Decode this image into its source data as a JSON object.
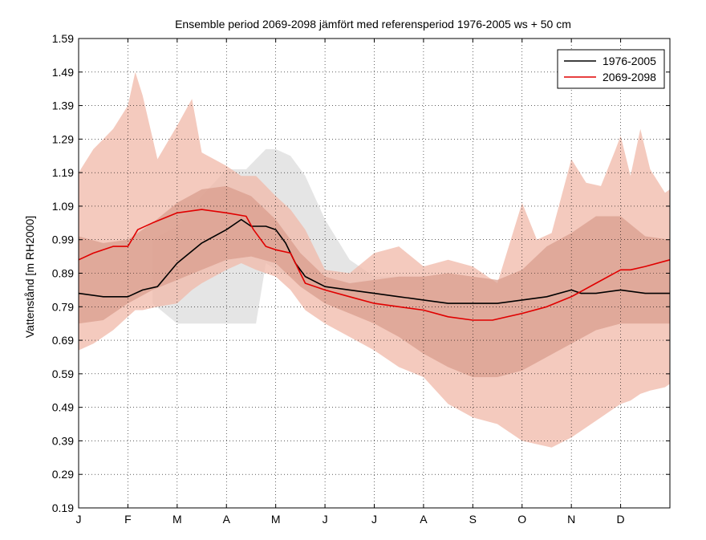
{
  "chart_data": {
    "type": "line",
    "title": "Ensemble period 2069-2098 jämfört med referensperiod 1976-2005 ws + 50 cm",
    "xlabel": "",
    "ylabel": "Vattenstånd [m RH2000]",
    "xlim": [
      1,
      13
    ],
    "ylim": [
      0.19,
      1.59
    ],
    "grid": true,
    "legend_position": "top-right",
    "x_ticks": [
      1,
      2,
      3,
      4,
      5,
      6,
      7,
      8,
      9,
      10,
      11,
      12
    ],
    "x_tick_labels": [
      "J",
      "F",
      "M",
      "A",
      "M",
      "J",
      "J",
      "A",
      "S",
      "O",
      "N",
      "D"
    ],
    "y_ticks": [
      0.19,
      0.29,
      0.39,
      0.49,
      0.59,
      0.69,
      0.79,
      0.89,
      0.99,
      1.09,
      1.19,
      1.29,
      1.39,
      1.49,
      1.59
    ],
    "y_tick_labels": [
      "0.19",
      "0.29",
      "0.39",
      "0.49",
      "0.59",
      "0.69",
      "0.79",
      "0.89",
      "0.99",
      "1.09",
      "1.19",
      "1.29",
      "1.39",
      "1.49",
      "1.59"
    ],
    "series": [
      {
        "name": "1976-2005",
        "color": "#000000",
        "x": [
          1.0,
          1.5,
          2.0,
          2.3,
          2.6,
          3.0,
          3.5,
          4.0,
          4.3,
          4.5,
          4.8,
          5.0,
          5.2,
          5.4,
          5.6,
          6.0,
          6.5,
          7.0,
          7.5,
          8.0,
          8.5,
          9.0,
          9.5,
          10.0,
          10.5,
          11.0,
          11.2,
          11.5,
          12.0,
          12.5,
          13.0
        ],
        "values": [
          0.83,
          0.82,
          0.82,
          0.84,
          0.85,
          0.92,
          0.98,
          1.02,
          1.05,
          1.03,
          1.03,
          1.02,
          0.98,
          0.92,
          0.88,
          0.85,
          0.84,
          0.83,
          0.82,
          0.81,
          0.8,
          0.8,
          0.8,
          0.81,
          0.82,
          0.84,
          0.83,
          0.83,
          0.84,
          0.83,
          0.83
        ]
      },
      {
        "name": "2069-2098",
        "color": "#e00000",
        "x": [
          1.0,
          1.3,
          1.7,
          2.0,
          2.2,
          2.5,
          3.0,
          3.5,
          4.0,
          4.4,
          4.55,
          4.8,
          5.0,
          5.3,
          5.5,
          5.6,
          6.0,
          6.5,
          7.0,
          7.5,
          8.0,
          8.5,
          9.0,
          9.4,
          10.0,
          10.5,
          11.0,
          11.5,
          12.0,
          12.2,
          12.5,
          13.0
        ],
        "values": [
          0.93,
          0.95,
          0.97,
          0.97,
          1.02,
          1.04,
          1.07,
          1.08,
          1.07,
          1.06,
          1.02,
          0.97,
          0.96,
          0.95,
          0.89,
          0.86,
          0.84,
          0.82,
          0.8,
          0.79,
          0.78,
          0.76,
          0.75,
          0.75,
          0.77,
          0.79,
          0.82,
          0.86,
          0.9,
          0.9,
          0.91,
          0.93
        ]
      }
    ],
    "bands": [
      {
        "name": "1976-2005 spread",
        "color": "#e0e0e0",
        "x": [
          2.5,
          3.0,
          3.5,
          4.0,
          4.4,
          4.6,
          4.8,
          5.0,
          5.3,
          5.6,
          6.0,
          6.5,
          7.0,
          8.0
        ],
        "upper": [
          0.99,
          1.03,
          1.12,
          1.2,
          1.2,
          1.23,
          1.26,
          1.26,
          1.24,
          1.18,
          1.05,
          0.93,
          0.88,
          0.88
        ],
        "lower": [
          0.8,
          0.74,
          0.74,
          0.74,
          0.74,
          0.74,
          0.92,
          0.9,
          0.88,
          0.86,
          0.84,
          0.84,
          0.84,
          0.84
        ]
      },
      {
        "name": "2069-2098 full range",
        "color": "#f0b8a8",
        "x": [
          1.0,
          1.3,
          1.7,
          2.0,
          2.15,
          2.3,
          2.6,
          3.0,
          3.3,
          3.5,
          4.0,
          4.3,
          4.6,
          5.0,
          5.3,
          5.6,
          6.0,
          6.5,
          7.0,
          7.5,
          8.0,
          8.5,
          9.0,
          9.5,
          10.0,
          10.3,
          10.6,
          11.0,
          11.3,
          11.6,
          11.9,
          12.0,
          12.2,
          12.4,
          12.6,
          12.9,
          13.0
        ],
        "upper": [
          1.19,
          1.26,
          1.32,
          1.39,
          1.49,
          1.42,
          1.23,
          1.33,
          1.41,
          1.25,
          1.21,
          1.18,
          1.18,
          1.12,
          1.08,
          1.02,
          0.9,
          0.89,
          0.95,
          0.97,
          0.91,
          0.93,
          0.91,
          0.86,
          1.1,
          0.99,
          1.01,
          1.23,
          1.16,
          1.15,
          1.26,
          1.3,
          1.18,
          1.32,
          1.2,
          1.13,
          1.14
        ],
        "lower": [
          0.66,
          0.68,
          0.72,
          0.76,
          0.78,
          0.78,
          0.79,
          0.8,
          0.84,
          0.86,
          0.9,
          0.92,
          0.9,
          0.88,
          0.84,
          0.78,
          0.74,
          0.7,
          0.66,
          0.61,
          0.58,
          0.5,
          0.46,
          0.44,
          0.39,
          0.38,
          0.37,
          0.4,
          0.43,
          0.46,
          0.49,
          0.5,
          0.51,
          0.53,
          0.54,
          0.55,
          0.56
        ]
      },
      {
        "name": "2069-2098 central spread",
        "color": "#d99d8d",
        "x": [
          1.0,
          1.5,
          2.0,
          2.5,
          3.0,
          3.5,
          4.0,
          4.5,
          5.0,
          5.5,
          6.0,
          6.5,
          7.0,
          7.5,
          8.0,
          8.5,
          9.0,
          9.5,
          10.0,
          10.5,
          11.0,
          11.5,
          12.0,
          12.5,
          13.0
        ],
        "upper": [
          1.0,
          0.98,
          0.99,
          1.04,
          1.1,
          1.14,
          1.15,
          1.12,
          1.05,
          0.95,
          0.88,
          0.86,
          0.87,
          0.88,
          0.88,
          0.89,
          0.88,
          0.87,
          0.9,
          0.97,
          1.01,
          1.06,
          1.06,
          1.0,
          0.99
        ],
        "lower": [
          0.74,
          0.75,
          0.8,
          0.84,
          0.87,
          0.9,
          0.93,
          0.94,
          0.92,
          0.85,
          0.8,
          0.77,
          0.74,
          0.7,
          0.65,
          0.61,
          0.58,
          0.58,
          0.6,
          0.64,
          0.68,
          0.72,
          0.74,
          0.74,
          0.74
        ]
      }
    ]
  }
}
